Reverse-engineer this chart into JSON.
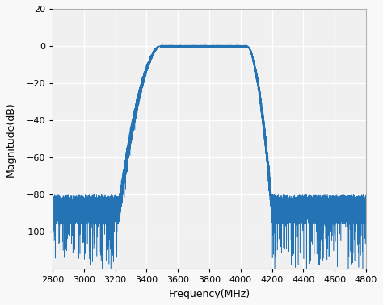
{
  "xlim": [
    2800,
    4800
  ],
  "ylim": [
    -120,
    20
  ],
  "xticks": [
    2800,
    3000,
    3200,
    3400,
    3600,
    3800,
    4000,
    4200,
    4400,
    4600,
    4800
  ],
  "yticks": [
    20,
    0,
    -20,
    -40,
    -60,
    -80,
    -100
  ],
  "xlabel": "Frequency(MHz)",
  "ylabel": "Magnitude(dB)",
  "line_color": "#2474b5",
  "background_color": "#f8f8f8",
  "passband_start": 3490,
  "passband_end": 4040,
  "transition_low_start": 3225,
  "transition_high_end": 4200,
  "noise_floor_mean": -88,
  "noise_amplitude": 8,
  "deep_spike_amplitude": 28,
  "n_points": 12000,
  "grid_color": "#ffffff",
  "grid_linewidth": 1.0,
  "ax_face_color": "#f0f0f0"
}
